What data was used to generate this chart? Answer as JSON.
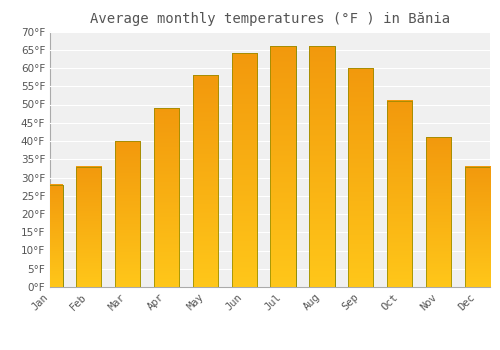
{
  "title": "Average monthly temperatures (°F ) in Bănia",
  "months": [
    "Jan",
    "Feb",
    "Mar",
    "Apr",
    "May",
    "Jun",
    "Jul",
    "Aug",
    "Sep",
    "Oct",
    "Nov",
    "Dec"
  ],
  "values": [
    28,
    33,
    40,
    49,
    58,
    64,
    66,
    66,
    60,
    51,
    41,
    33
  ],
  "bar_color_bottom": "#FFB300",
  "bar_color_top": "#FFCC44",
  "bar_edge_color": "#888800",
  "background_color": "#FFFFFF",
  "plot_bg_color": "#F0F0F0",
  "grid_color": "#FFFFFF",
  "text_color": "#555555",
  "ylim": [
    0,
    70
  ],
  "yticks": [
    0,
    5,
    10,
    15,
    20,
    25,
    30,
    35,
    40,
    45,
    50,
    55,
    60,
    65,
    70
  ],
  "ylabel_suffix": "°F",
  "title_fontsize": 10,
  "tick_fontsize": 7.5,
  "bar_width": 0.65
}
